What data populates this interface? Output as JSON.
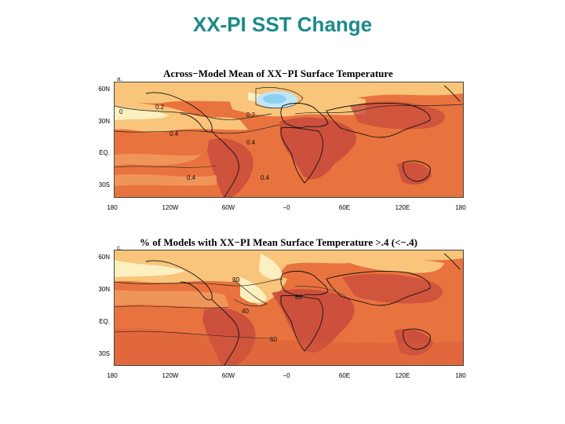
{
  "slide": {
    "title": "XX-PI SST Change"
  },
  "panels": [
    {
      "letter": "a.",
      "title": "Across−Model Mean of XX−PI Surface Temperature",
      "lat_labels": [
        "60N",
        "30N",
        "EQ.",
        "30S"
      ],
      "lon_labels": [
        "180",
        "120W",
        "60W",
        "−0",
        "60E",
        "120E",
        "180"
      ],
      "contour_labels": [
        "0",
        "0.2",
        "0.2",
        "0.4",
        "0.4",
        "0.4",
        "0.4"
      ]
    },
    {
      "letter": "c.",
      "title": "% of Models with XX−PI Mean Surface Temperature >.4 (<−.4)",
      "lat_labels": [
        "60N",
        "30N",
        "EQ.",
        "30S"
      ],
      "lon_labels": [
        "180",
        "120W",
        "60W",
        "−0",
        "60E",
        "120E",
        "180"
      ],
      "contour_labels": [
        "20",
        "40",
        "60",
        "80"
      ]
    }
  ],
  "colors": {
    "title": "#1a8a8a",
    "warm_base": "#e9733e",
    "warm_dark": "#c84a3c",
    "warm_mid": "#f0955a",
    "warm_light": "#f8c57a",
    "pale": "#fdf0c0",
    "cool": "#8cd0f0"
  }
}
